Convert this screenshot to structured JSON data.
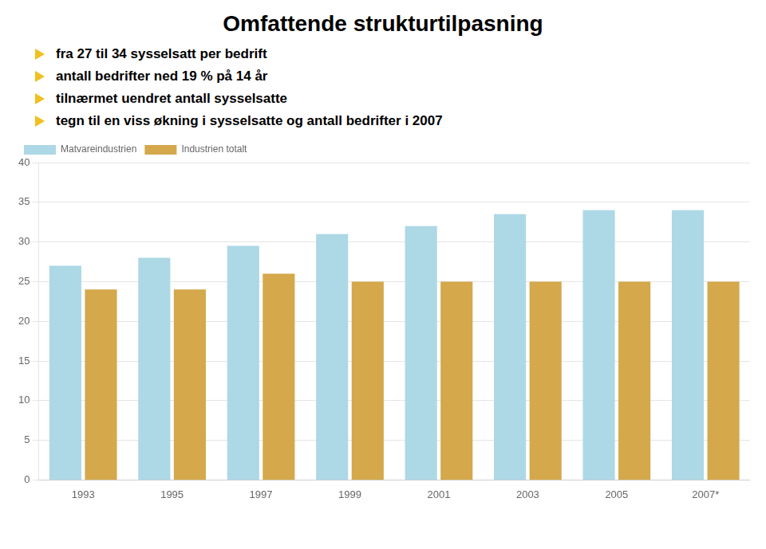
{
  "chart_data": {
    "type": "bar",
    "title": "Omfattende strukturtilpasning",
    "annotations": [
      "fra 27 til 34 sysselsatt per bedrift",
      "antall bedrifter ned 19 % på 14 år",
      "tilnærmet uendret antall sysselsatte",
      "tegn til en viss økning i sysselsatte og antall bedrifter i 2007"
    ],
    "categories": [
      "1993",
      "1995",
      "1997",
      "1999",
      "2001",
      "2003",
      "2005",
      "2007*"
    ],
    "series": [
      {
        "name": "Matvareindustrien",
        "color": "#add8e6",
        "values": [
          27,
          28,
          29.5,
          31,
          32,
          33.5,
          34,
          34
        ]
      },
      {
        "name": "Industrien totalt",
        "color": "#d4a84b",
        "values": [
          24,
          24,
          26,
          25,
          25,
          25,
          25,
          25
        ]
      }
    ],
    "ylim": [
      0,
      40
    ],
    "yticks": [
      0,
      5,
      10,
      15,
      20,
      25,
      30,
      35,
      40
    ],
    "grid": true,
    "legend": "upper left"
  }
}
